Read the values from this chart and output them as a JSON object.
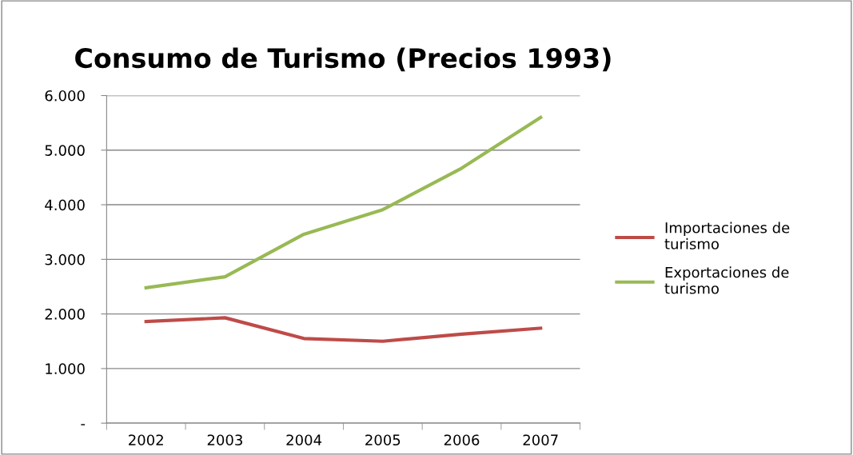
{
  "chart_data": {
    "type": "line",
    "title": "Consumo de Turismo (Precios 1993)",
    "categories": [
      "2002",
      "2003",
      "2004",
      "2005",
      "2006",
      "2007"
    ],
    "series": [
      {
        "name": "Importaciones de turismo",
        "color": "#be4b48",
        "values": [
          1860,
          1930,
          1550,
          1500,
          1630,
          1740
        ]
      },
      {
        "name": "Exportaciones de turismo",
        "color": "#98b954",
        "values": [
          2480,
          2680,
          3460,
          3910,
          4670,
          5600
        ]
      }
    ],
    "ylim": [
      0,
      6000
    ],
    "yticks": [
      {
        "value": 0,
        "label": "-"
      },
      {
        "value": 1000,
        "label": "1.000"
      },
      {
        "value": 2000,
        "label": "2.000"
      },
      {
        "value": 3000,
        "label": "3.000"
      },
      {
        "value": 4000,
        "label": "4.000"
      },
      {
        "value": 5000,
        "label": "5.000"
      },
      {
        "value": 6000,
        "label": "6.000"
      }
    ],
    "grid": "y",
    "legend": "right",
    "marker": "none",
    "line_style": "solid"
  }
}
